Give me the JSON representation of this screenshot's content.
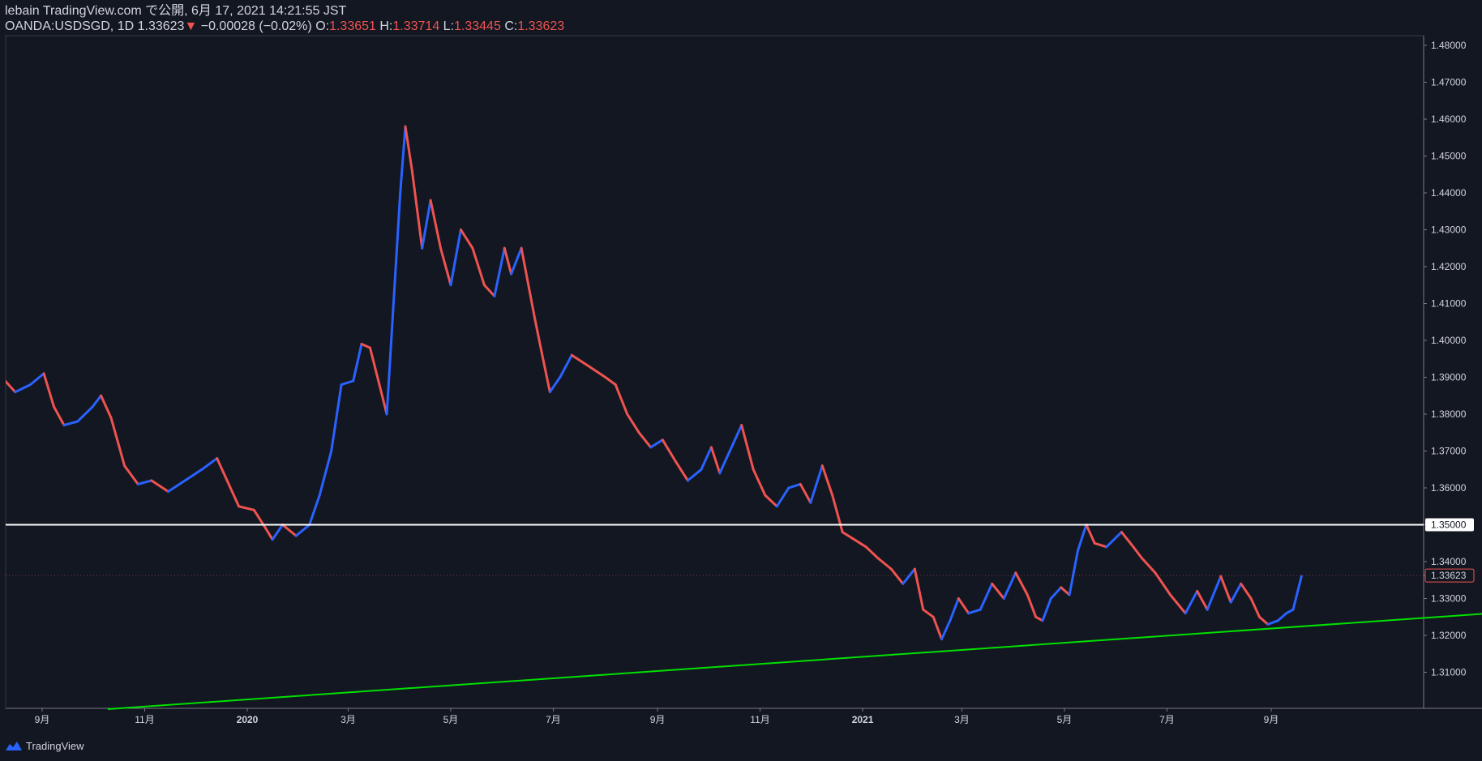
{
  "header": {
    "line1": "lebain TradingView.com で公開, 6月 17, 2021 14:21:55 JST",
    "symbol": "OANDA:USDSGD, 1D",
    "last": "1.33623",
    "change": "−0.00028 (−0.02%)",
    "o_label": "O:",
    "o": "1.33651",
    "h_label": "H:",
    "h": "1.33714",
    "l_label": "L:",
    "l": "1.33445",
    "c_label": "C:",
    "c": "1.33623"
  },
  "footer": {
    "brand": "TradingView"
  },
  "colors": {
    "background": "#131722",
    "up": "#2962ff",
    "down": "#ef5350",
    "support_line": "#00e000",
    "resistance_line": "#ffffff",
    "text": "#d1d4dc"
  },
  "chart_data": {
    "type": "line",
    "title": "OANDA:USDSGD, 1D",
    "xlabel": "",
    "ylabel": "",
    "ylim": [
      1.3,
      1.482
    ],
    "y_ticks": [
      "1.48000",
      "1.47000",
      "1.46000",
      "1.45000",
      "1.44000",
      "1.43000",
      "1.42000",
      "1.41000",
      "1.40000",
      "1.39000",
      "1.38000",
      "1.37000",
      "1.36000",
      "1.35000",
      "1.34000",
      "1.33623",
      "1.33000",
      "1.32000",
      "1.31000"
    ],
    "x_ticks": [
      {
        "label": "9月",
        "date": "2019-09"
      },
      {
        "label": "11月",
        "date": "2019-11"
      },
      {
        "label": "2020",
        "date": "2020-01"
      },
      {
        "label": "3月",
        "date": "2020-03"
      },
      {
        "label": "5月",
        "date": "2020-05"
      },
      {
        "label": "7月",
        "date": "2020-07"
      },
      {
        "label": "9月",
        "date": "2020-09"
      },
      {
        "label": "11月",
        "date": "2020-11"
      },
      {
        "label": "2021",
        "date": "2021-01"
      },
      {
        "label": "3月",
        "date": "2021-03"
      },
      {
        "label": "5月",
        "date": "2021-05"
      },
      {
        "label": "7月",
        "date": "2021-07"
      },
      {
        "label": "9月",
        "date": "2021-09"
      }
    ],
    "series": [
      {
        "points": [
          [
            "2019-08-05",
            1.384
          ],
          [
            "2019-08-10",
            1.389
          ],
          [
            "2019-08-16",
            1.386
          ],
          [
            "2019-08-25",
            1.388
          ],
          [
            "2019-09-02",
            1.391
          ],
          [
            "2019-09-08",
            1.382
          ],
          [
            "2019-09-14",
            1.377
          ],
          [
            "2019-09-22",
            1.378
          ],
          [
            "2019-10-01",
            1.382
          ],
          [
            "2019-10-06",
            1.385
          ],
          [
            "2019-10-12",
            1.379
          ],
          [
            "2019-10-20",
            1.366
          ],
          [
            "2019-10-28",
            1.361
          ],
          [
            "2019-11-05",
            1.362
          ],
          [
            "2019-11-15",
            1.359
          ],
          [
            "2019-11-25",
            1.362
          ],
          [
            "2019-12-05",
            1.365
          ],
          [
            "2019-12-14",
            1.368
          ],
          [
            "2019-12-20",
            1.362
          ],
          [
            "2019-12-27",
            1.355
          ],
          [
            "2020-01-05",
            1.354
          ],
          [
            "2020-01-12",
            1.349
          ],
          [
            "2020-01-16",
            1.346
          ],
          [
            "2020-01-22",
            1.35
          ],
          [
            "2020-01-30",
            1.347
          ],
          [
            "2020-02-07",
            1.35
          ],
          [
            "2020-02-13",
            1.358
          ],
          [
            "2020-02-20",
            1.37
          ],
          [
            "2020-02-26",
            1.388
          ],
          [
            "2020-03-04",
            1.389
          ],
          [
            "2020-03-09",
            1.399
          ],
          [
            "2020-03-14",
            1.398
          ],
          [
            "2020-03-19",
            1.389
          ],
          [
            "2020-03-24",
            1.38
          ],
          [
            "2020-03-28",
            1.41
          ],
          [
            "2020-04-01",
            1.44
          ],
          [
            "2020-04-04",
            1.458
          ],
          [
            "2020-04-08",
            1.446
          ],
          [
            "2020-04-14",
            1.425
          ],
          [
            "2020-04-19",
            1.438
          ],
          [
            "2020-04-25",
            1.425
          ],
          [
            "2020-05-01",
            1.415
          ],
          [
            "2020-05-07",
            1.43
          ],
          [
            "2020-05-14",
            1.425
          ],
          [
            "2020-05-21",
            1.415
          ],
          [
            "2020-05-27",
            1.412
          ],
          [
            "2020-06-02",
            1.425
          ],
          [
            "2020-06-06",
            1.418
          ],
          [
            "2020-06-12",
            1.425
          ],
          [
            "2020-06-20",
            1.406
          ],
          [
            "2020-06-24",
            1.397
          ],
          [
            "2020-06-29",
            1.386
          ],
          [
            "2020-07-05",
            1.39
          ],
          [
            "2020-07-12",
            1.396
          ],
          [
            "2020-07-22",
            1.393
          ],
          [
            "2020-08-01",
            1.39
          ],
          [
            "2020-08-07",
            1.388
          ],
          [
            "2020-08-14",
            1.38
          ],
          [
            "2020-08-21",
            1.375
          ],
          [
            "2020-08-28",
            1.371
          ],
          [
            "2020-09-04",
            1.373
          ],
          [
            "2020-09-12",
            1.367
          ],
          [
            "2020-09-19",
            1.362
          ],
          [
            "2020-09-27",
            1.365
          ],
          [
            "2020-10-03",
            1.371
          ],
          [
            "2020-10-08",
            1.364
          ],
          [
            "2020-10-16",
            1.372
          ],
          [
            "2020-10-21",
            1.377
          ],
          [
            "2020-10-28",
            1.365
          ],
          [
            "2020-11-04",
            1.358
          ],
          [
            "2020-11-11",
            1.355
          ],
          [
            "2020-11-18",
            1.36
          ],
          [
            "2020-11-25",
            1.361
          ],
          [
            "2020-12-01",
            1.356
          ],
          [
            "2020-12-08",
            1.366
          ],
          [
            "2020-12-14",
            1.358
          ],
          [
            "2020-12-20",
            1.348
          ],
          [
            "2020-12-27",
            1.346
          ],
          [
            "2021-01-03",
            1.344
          ],
          [
            "2021-01-10",
            1.341
          ],
          [
            "2021-01-18",
            1.338
          ],
          [
            "2021-01-25",
            1.334
          ],
          [
            "2021-02-01",
            1.338
          ],
          [
            "2021-02-06",
            1.327
          ],
          [
            "2021-02-12",
            1.325
          ],
          [
            "2021-02-17",
            1.319
          ],
          [
            "2021-02-22",
            1.324
          ],
          [
            "2021-02-27",
            1.33
          ],
          [
            "2021-03-05",
            1.326
          ],
          [
            "2021-03-12",
            1.327
          ],
          [
            "2021-03-19",
            1.334
          ],
          [
            "2021-03-26",
            1.33
          ],
          [
            "2021-04-02",
            1.337
          ],
          [
            "2021-04-09",
            1.331
          ],
          [
            "2021-04-14",
            1.325
          ],
          [
            "2021-04-18",
            1.324
          ],
          [
            "2021-04-23",
            1.33
          ],
          [
            "2021-04-29",
            1.333
          ],
          [
            "2021-05-04",
            1.331
          ],
          [
            "2021-05-09",
            1.343
          ],
          [
            "2021-05-14",
            1.35
          ],
          [
            "2021-05-19",
            1.345
          ],
          [
            "2021-05-26",
            1.344
          ],
          [
            "2021-06-04",
            1.348
          ],
          [
            "2021-06-11",
            1.344
          ],
          [
            "2021-06-16",
            1.341
          ],
          [
            "2021-06-24",
            1.337
          ],
          [
            "2021-07-03",
            1.331
          ],
          [
            "2021-07-12",
            1.326
          ],
          [
            "2021-07-19",
            1.332
          ],
          [
            "2021-07-25",
            1.327
          ],
          [
            "2021-08-02",
            1.336
          ],
          [
            "2021-08-08",
            1.329
          ],
          [
            "2021-08-14",
            1.334
          ],
          [
            "2021-08-20",
            1.33
          ],
          [
            "2021-08-25",
            1.325
          ],
          [
            "2021-08-30",
            1.323
          ],
          [
            "2021-09-05",
            1.324
          ],
          [
            "2021-09-10",
            1.326
          ],
          [
            "2021-09-14",
            1.327
          ],
          [
            "2021-09-19",
            1.336
          ]
        ]
      }
    ],
    "horizontal_lines": [
      {
        "value": 1.35,
        "label": "1.35000"
      }
    ],
    "last_price_label": "1.33623",
    "trend_line": {
      "from": [
        "2019-10-10",
        1.3
      ],
      "to": [
        "2022-02-01",
        1.3267
      ]
    },
    "grid": false,
    "legend": "none"
  }
}
